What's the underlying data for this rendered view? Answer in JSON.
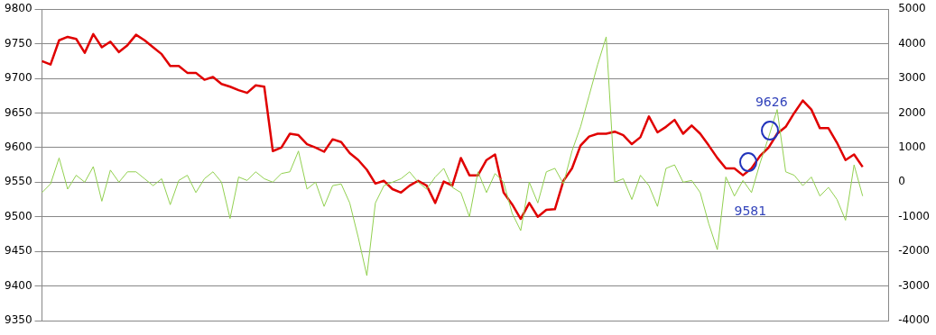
{
  "chart_data": {
    "type": "line",
    "categories": [
      null,
      null,
      null,
      null,
      null,
      null,
      null,
      null,
      null,
      null,
      null,
      null,
      null,
      null,
      null,
      null,
      null,
      null,
      null,
      null,
      null,
      null,
      null,
      null,
      null,
      null,
      null,
      null,
      null,
      null,
      null,
      null,
      null,
      null,
      null,
      null,
      null,
      null,
      null,
      null,
      null,
      null,
      null,
      null,
      null,
      null,
      null,
      null,
      null,
      null,
      null,
      null,
      null,
      null,
      null,
      null,
      null,
      null,
      null,
      null,
      null,
      null,
      null,
      null,
      null,
      null,
      null,
      null,
      null,
      null,
      null,
      null,
      null,
      null,
      null,
      null,
      null,
      null,
      null,
      null,
      null,
      null,
      null,
      null,
      null,
      null,
      null,
      null,
      null,
      null,
      null,
      null,
      null,
      null,
      null,
      null,
      null,
      null,
      null,
      null
    ],
    "series": [
      {
        "color": "#92d050",
        "axis": "y2",
        "values": [
          -300,
          -50,
          700,
          -200,
          200,
          0,
          450,
          -550,
          350,
          0,
          300,
          300,
          100,
          -100,
          100,
          -650,
          50,
          200,
          -300,
          100,
          300,
          0,
          -1050,
          150,
          50,
          300,
          100,
          0,
          250,
          300,
          900,
          -200,
          0,
          -700,
          -100,
          -50,
          -600,
          -1600,
          -2700,
          -600,
          -100,
          0,
          100,
          300,
          0,
          -200,
          150,
          400,
          -150,
          -300,
          -1000,
          300,
          -300,
          250,
          0,
          -900,
          -1400,
          0,
          -600,
          300,
          400,
          -50,
          900,
          1600,
          2500,
          3400,
          4200,
          0,
          100,
          -500,
          200,
          -100,
          -700,
          400,
          500,
          0,
          50,
          -300,
          -1200,
          -1950,
          150,
          -400,
          50,
          -300,
          550,
          1300,
          2100,
          300,
          200,
          -100,
          150,
          -400,
          -150,
          -500,
          -1100,
          500,
          -400,
          null,
          null,
          null
        ]
      },
      {
        "color": "#e00000",
        "values": [
          9725,
          9720,
          9755,
          9760,
          9757,
          9737,
          9764,
          9745,
          9753,
          9738,
          9748,
          9763,
          9755,
          9745,
          9735,
          9718,
          9718,
          9708,
          9708,
          9698,
          9702,
          9692,
          9688,
          9683,
          9679,
          9690,
          9688,
          9595,
          9600,
          9620,
          9618,
          9605,
          9600,
          9594,
          9612,
          9608,
          9592,
          9582,
          9568,
          9548,
          9552,
          9540,
          9535,
          9545,
          9552,
          9545,
          9520,
          9551,
          9545,
          9585,
          9560,
          9560,
          9582,
          9590,
          9535,
          9518,
          9497,
          9520,
          9500,
          9510,
          9511,
          9552,
          9570,
          9603,
          9616,
          9620,
          9620,
          9623,
          9618,
          9605,
          9615,
          9645,
          9622,
          9630,
          9640,
          9620,
          9632,
          9620,
          9603,
          9585,
          9570,
          9570,
          9560,
          9570,
          9588,
          9600,
          9620,
          9630,
          9650,
          9668,
          9655,
          9628,
          9628,
          9607,
          9582,
          9590,
          9572,
          null,
          null,
          null
        ]
      }
    ],
    "ylim": [
      9350,
      9800
    ],
    "yticks": [
      9350,
      9400,
      9450,
      9500,
      9550,
      9600,
      9650,
      9700,
      9750,
      9800
    ],
    "y2lim": [
      -4000,
      5000
    ],
    "y2ticks": [
      -4000,
      -3000,
      -2000,
      -1000,
      0,
      1000,
      2000,
      3000,
      4000,
      5000
    ],
    "annotations": [
      "9626",
      "9581"
    ],
    "grid": "y",
    "legend": false,
    "marker": "none",
    "line_style": "solid"
  }
}
